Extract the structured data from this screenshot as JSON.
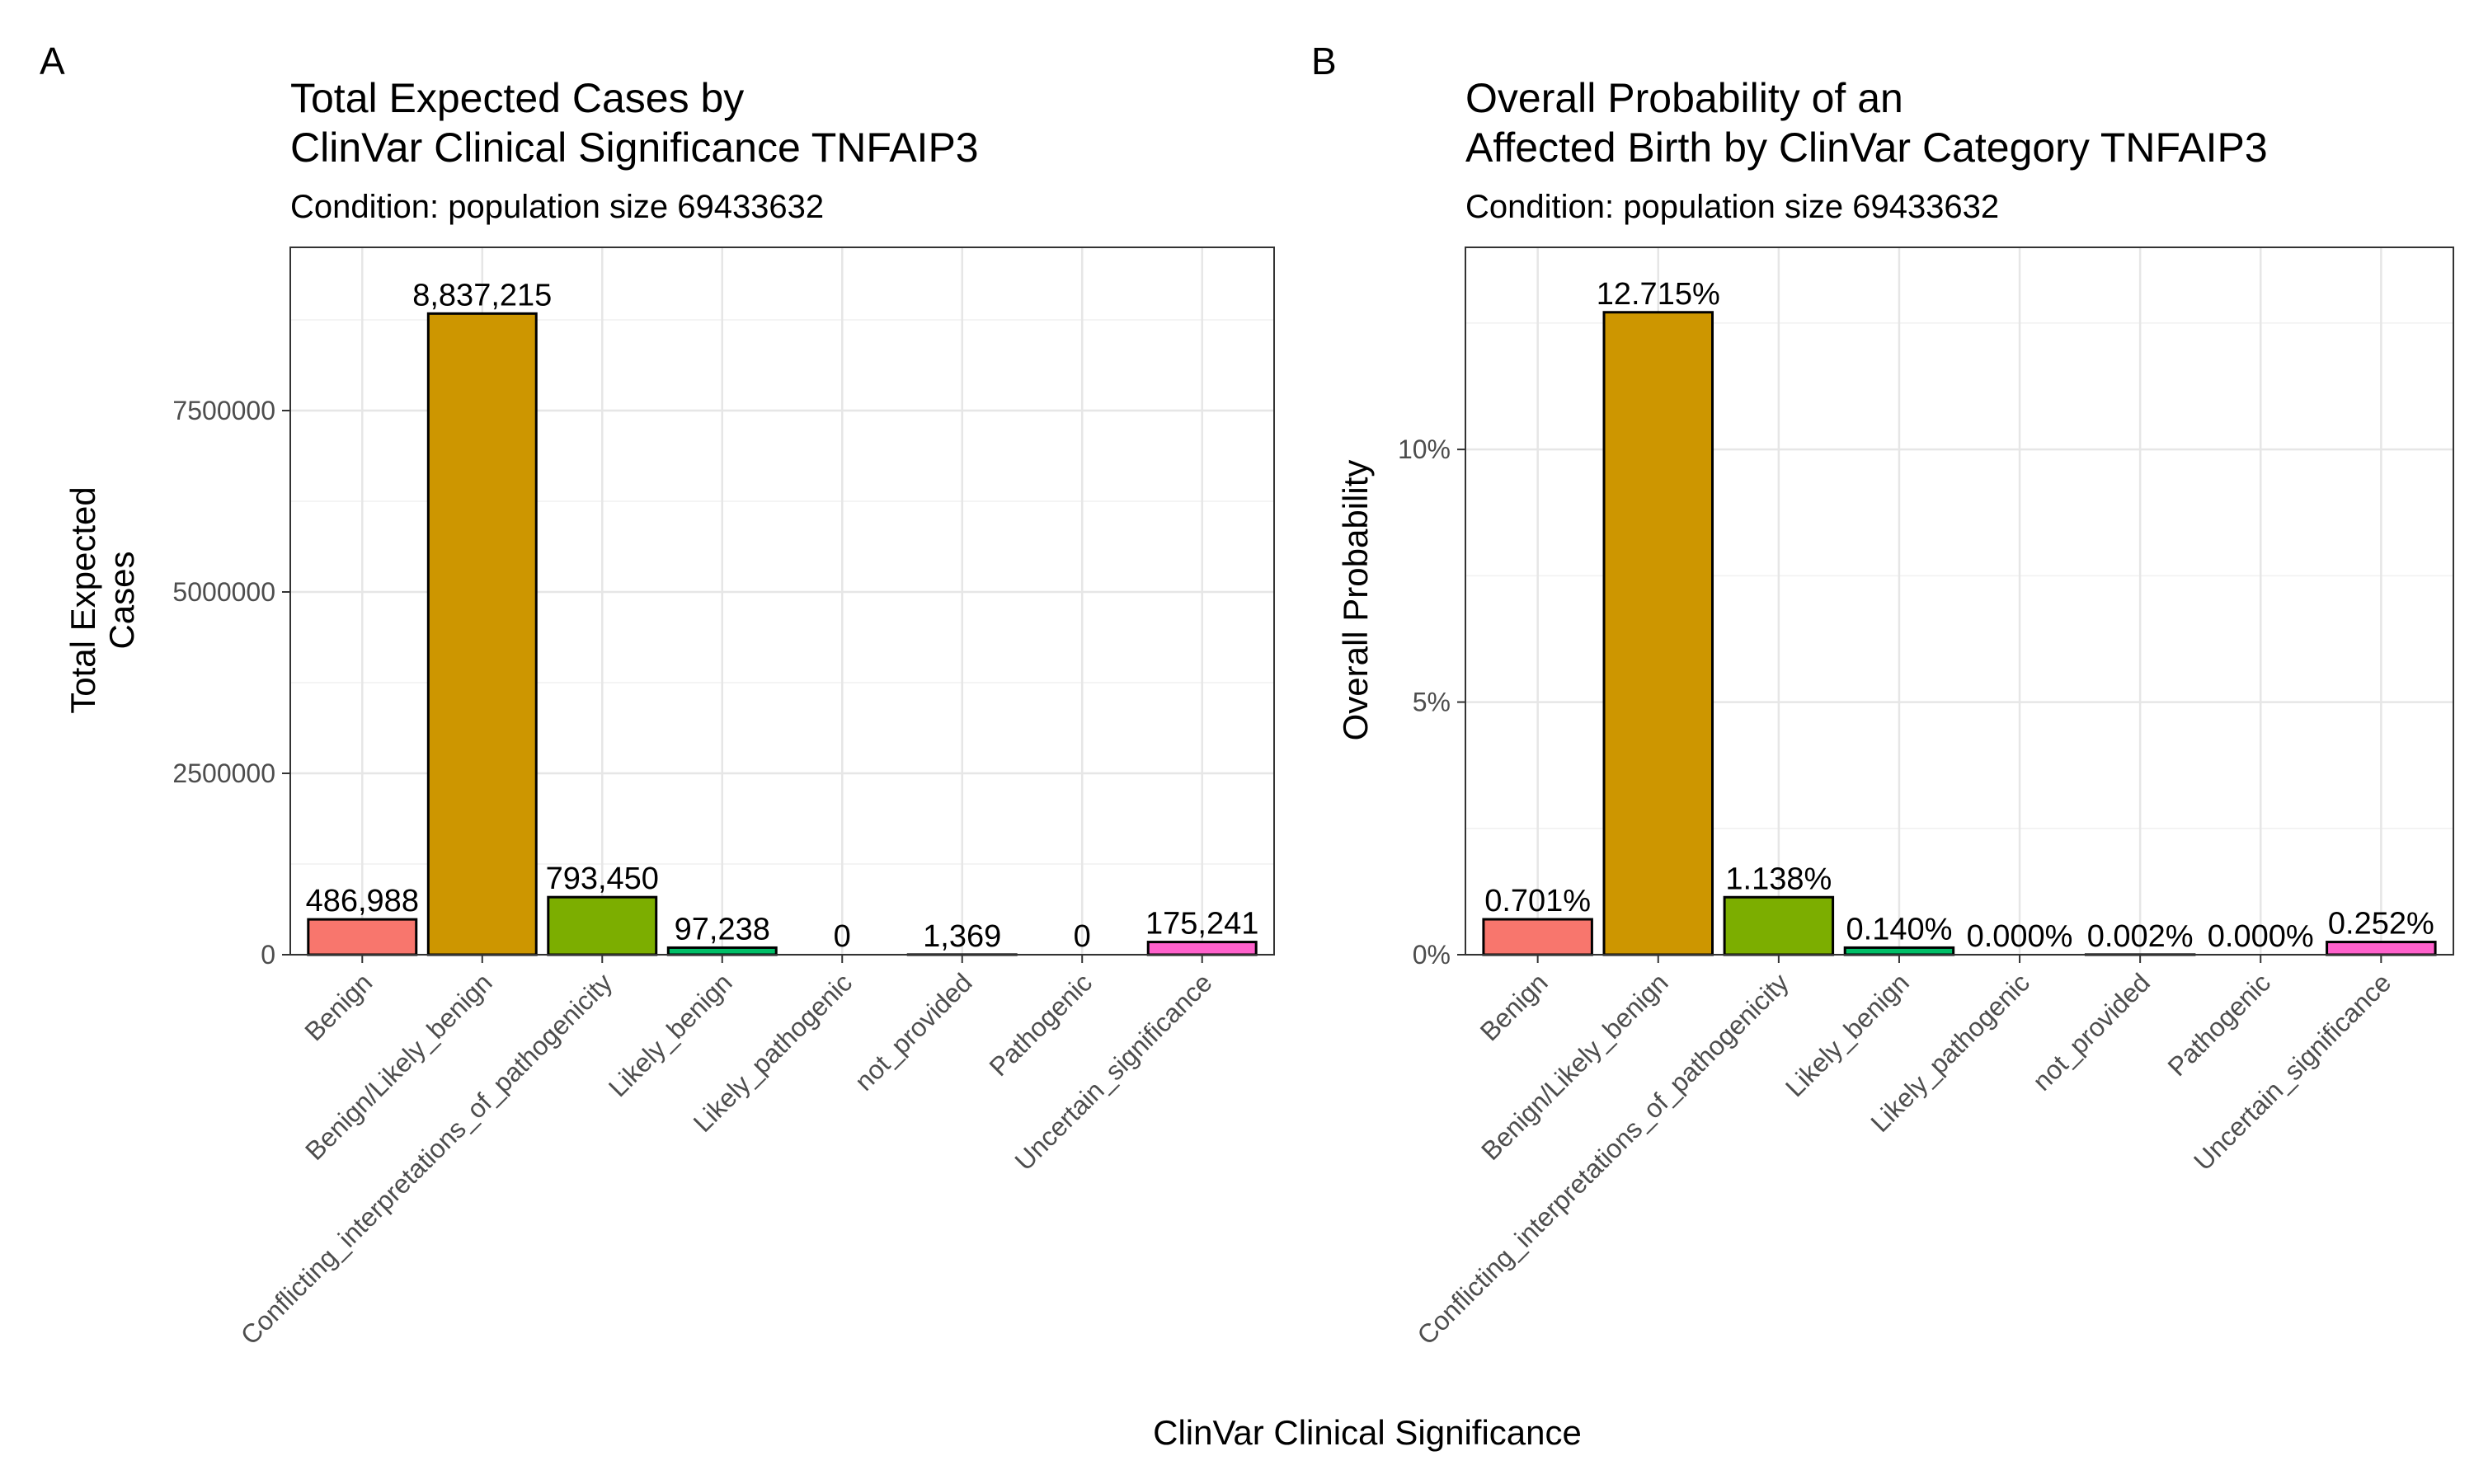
{
  "figure": {
    "shared_xlabel": "ClinVar Clinical Significance",
    "colors": [
      "#F8766D",
      "#CD9600",
      "#7CAE00",
      "#00BE67",
      "#00BFC4",
      "#00A9FF",
      "#C77CFF",
      "#FF61CC"
    ]
  },
  "chart_data": [
    {
      "panel_letter": "A",
      "type": "bar",
      "title_line1": "Total Expected Cases by",
      "title_line2": "ClinVar Clinical Significance TNFAIP3",
      "subtitle": "Condition: population size 69433632",
      "ylabel_line1": "Total Expected",
      "ylabel_line2": "Cases",
      "categories": [
        "Benign",
        "Benign/Likely_benign",
        "Conflicting_interpretations_of_pathogenicity",
        "Likely_benign",
        "Likely_pathogenic",
        "not_provided",
        "Pathogenic",
        "Uncertain_significance"
      ],
      "values": [
        486988,
        8837215,
        793450,
        97238,
        0,
        1369,
        0,
        175241
      ],
      "data_labels": [
        "486,988",
        "8,837,215",
        "793,450",
        "97,238",
        "0",
        "1,369",
        "0",
        "175,241"
      ],
      "ylim": [
        0,
        9750000
      ],
      "yticks": [
        0,
        2500000,
        5000000,
        7500000
      ],
      "ytick_labels": [
        "0",
        "2500000",
        "5000000",
        "7500000"
      ],
      "grid": true
    },
    {
      "panel_letter": "B",
      "type": "bar",
      "title_line1": "Overall Probability of an",
      "title_line2": "Affected Birth by ClinVar Category TNFAIP3",
      "subtitle": "Condition: population size 69433632",
      "ylabel_line1": "Overall Probability",
      "ylabel_line2": "",
      "categories": [
        "Benign",
        "Benign/Likely_benign",
        "Conflicting_interpretations_of_pathogenicity",
        "Likely_benign",
        "Likely_pathogenic",
        "not_provided",
        "Pathogenic",
        "Uncertain_significance"
      ],
      "values": [
        0.701,
        12.715,
        1.138,
        0.14,
        0.0,
        0.002,
        0.0,
        0.252
      ],
      "data_labels": [
        "0.701%",
        "12.715%",
        "1.138%",
        "0.140%",
        "0.000%",
        "0.002%",
        "0.000%",
        "0.252%"
      ],
      "ylim": [
        0,
        14.0
      ],
      "yticks": [
        0,
        5,
        10
      ],
      "ytick_labels": [
        "0%",
        "5%",
        "10%"
      ],
      "grid": true
    }
  ]
}
